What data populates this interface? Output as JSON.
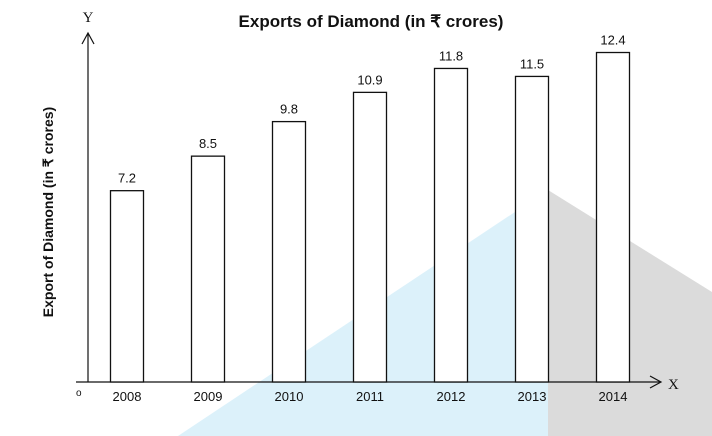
{
  "chart_data": {
    "type": "bar",
    "title": "Exports of Diamond (in ₹ crores)",
    "xlabel": "",
    "ylabel": "Export of Diamond (in ₹ crores)",
    "x_axis_letter": "X",
    "y_axis_letter": "Y",
    "origin_label": "o",
    "categories": [
      "2008",
      "2009",
      "2010",
      "2011",
      "2012",
      "2013",
      "2014"
    ],
    "values": [
      7.2,
      8.5,
      9.8,
      10.9,
      11.8,
      11.5,
      12.4
    ],
    "value_labels": [
      "7.2",
      "8.5",
      "9.8",
      "10.9",
      "11.8",
      "11.5",
      "12.4"
    ],
    "ylim": [
      0,
      14
    ],
    "grid": false,
    "legend": "none",
    "colors": {
      "bar_fill": "#ffffff",
      "bar_stroke": "#111111",
      "overlay_blue": "#d6eef9",
      "overlay_gray": "#d9d9d9"
    }
  }
}
